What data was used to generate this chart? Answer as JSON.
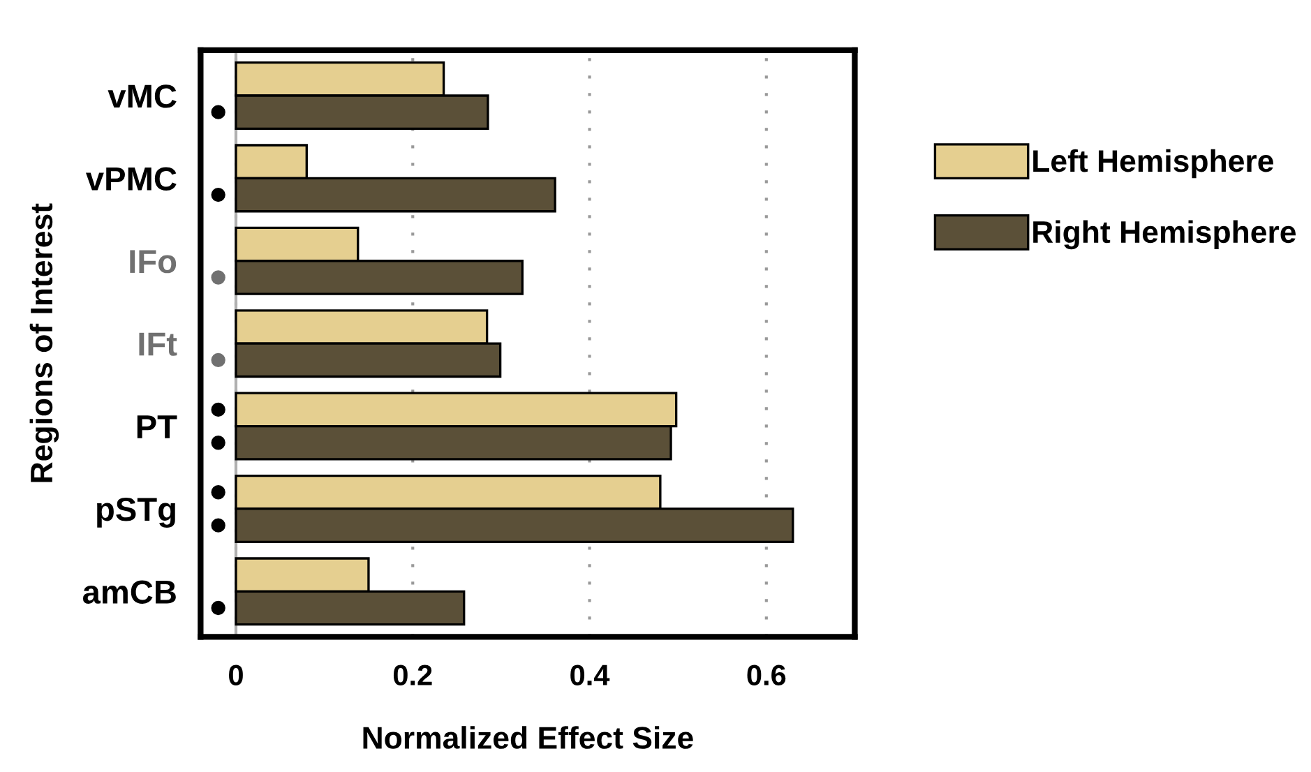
{
  "chart_data": {
    "type": "bar",
    "orientation": "horizontal",
    "xlabel": "Normalized Effect Size",
    "ylabel": "Regions of Interest",
    "categories": [
      "vMC",
      "vPMC",
      "IFo",
      "IFt",
      "PT",
      "pSTg",
      "amCB"
    ],
    "series": [
      {
        "name": "Left Hemisphere",
        "color": "#e5cf90",
        "values": [
          0.235,
          0.08,
          0.138,
          0.284,
          0.498,
          0.48,
          0.15
        ]
      },
      {
        "name": "Right Hemisphere",
        "color": "#5b5038",
        "values": [
          0.285,
          0.361,
          0.324,
          0.299,
          0.492,
          0.63,
          0.258
        ]
      },
      {
        "type": "scatter",
        "color": "#000000",
        "values": [
          null,
          null,
          null,
          null,
          -0.02,
          -0.02,
          null
        ]
      },
      {
        "type": "scatter",
        "colors": [
          "#000000",
          "#000000",
          "#707070",
          "#707070",
          "#000000",
          "#000000",
          "#000000"
        ],
        "values": [
          -0.02,
          -0.02,
          -0.02,
          -0.02,
          -0.02,
          -0.02,
          -0.02
        ]
      }
    ],
    "xlim": [
      -0.04,
      0.7
    ],
    "xticks": [
      0,
      0.2,
      0.4,
      0.6
    ],
    "ref_lines": [
      {
        "axis": "x",
        "value": 0,
        "color": "#b0b0b0"
      }
    ],
    "grid": "x",
    "legend": "right",
    "marker": "circle"
  }
}
